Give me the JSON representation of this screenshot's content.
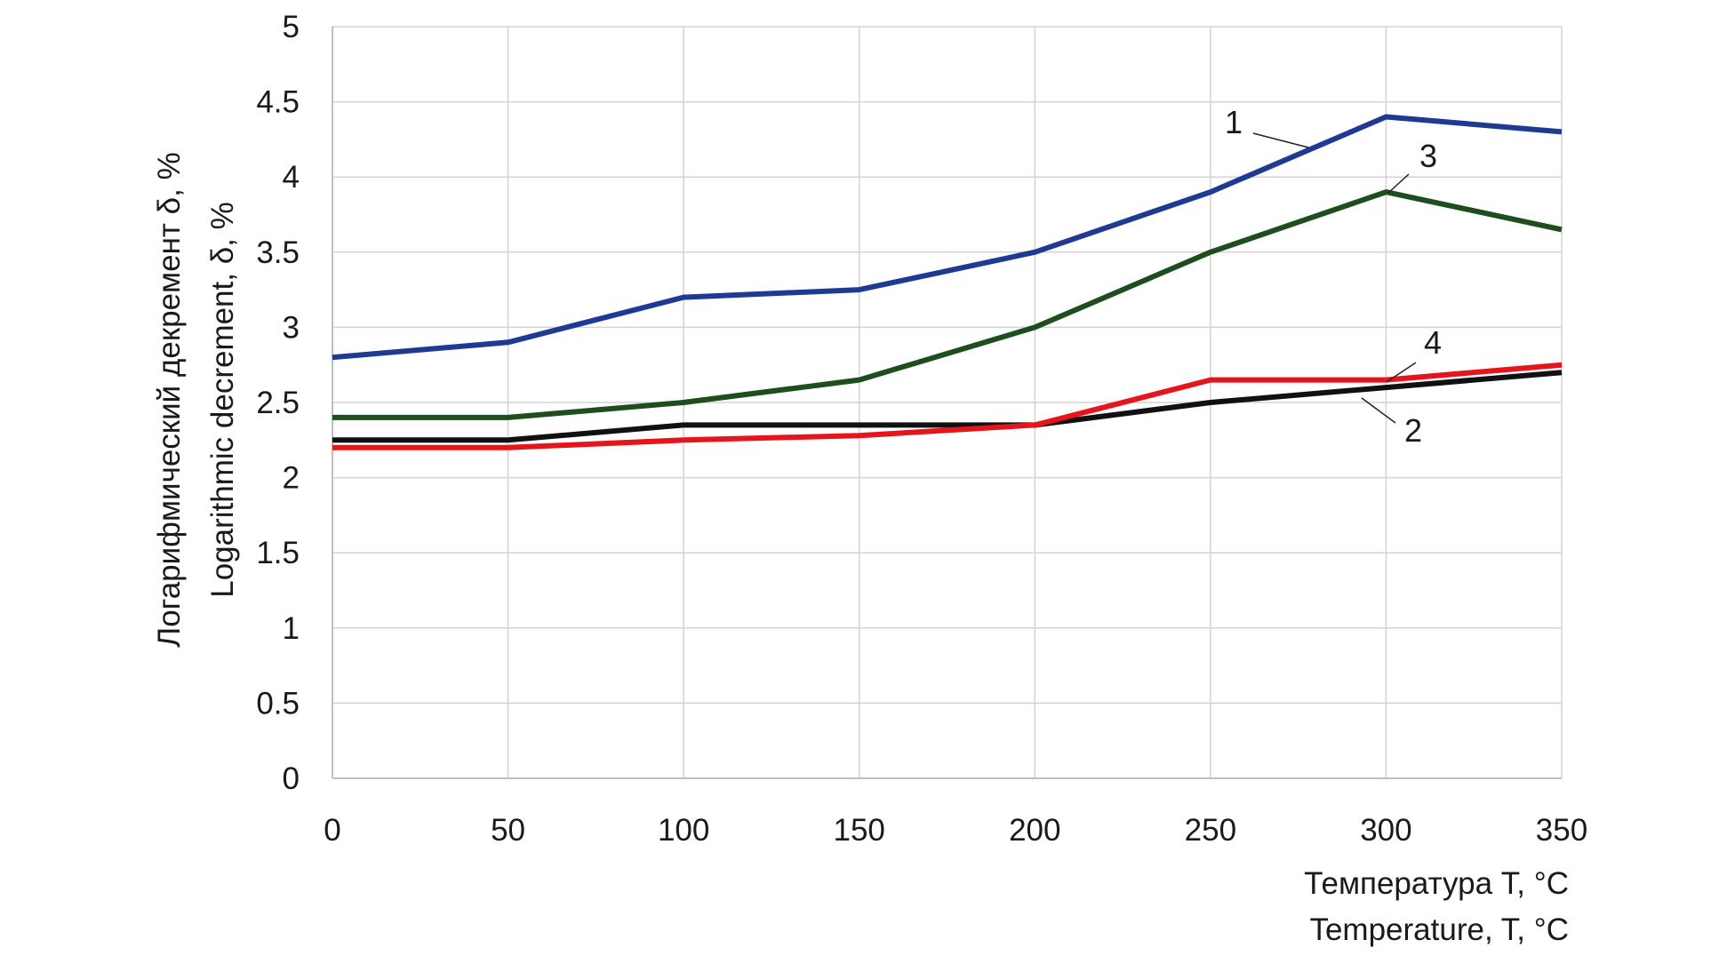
{
  "chart_data": {
    "type": "line",
    "x": [
      0,
      50,
      100,
      150,
      200,
      250,
      300,
      350
    ],
    "xlim": [
      0,
      350
    ],
    "ylim": [
      0,
      5
    ],
    "x_ticks": [
      "0",
      "50",
      "100",
      "150",
      "200",
      "250",
      "300",
      "350"
    ],
    "y_ticks": [
      "0",
      "0.5",
      "1",
      "1.5",
      "2",
      "2.5",
      "3",
      "3.5",
      "4",
      "4.5",
      "5"
    ],
    "ylabel_ru": "Логарифмический декремент  δ, %",
    "ylabel_en": "Logarithmic decrement, δ, %",
    "xlabel_ru": "Температура T, °C",
    "xlabel_en": "Temperature, T, °C",
    "grid": true,
    "series": [
      {
        "label": "1",
        "color": "#1f3a93",
        "values": [
          2.8,
          2.9,
          3.2,
          3.25,
          3.5,
          3.9,
          4.4,
          4.3
        ]
      },
      {
        "label": "2",
        "color": "#111111",
        "values": [
          2.25,
          2.25,
          2.35,
          2.35,
          2.35,
          2.5,
          2.6,
          2.7
        ]
      },
      {
        "label": "3",
        "color": "#1e4d1e",
        "values": [
          2.4,
          2.4,
          2.5,
          2.65,
          3.0,
          3.5,
          3.9,
          3.65
        ]
      },
      {
        "label": "4",
        "color": "#e8141c",
        "values": [
          2.2,
          2.2,
          2.25,
          2.28,
          2.35,
          2.65,
          2.65,
          2.75
        ]
      }
    ]
  }
}
